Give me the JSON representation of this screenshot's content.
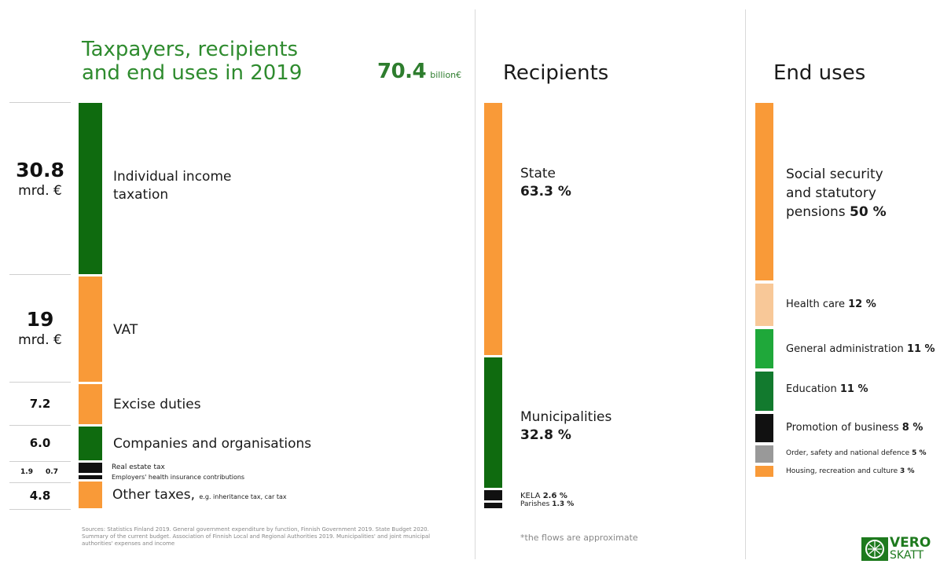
{
  "title": "Taxpayers, recipients and end uses in 2019",
  "total": {
    "value": "70.4",
    "unit": "billion€"
  },
  "headers": {
    "recipients": "Recipients",
    "end_uses": "End uses"
  },
  "amounts": {
    "individual_big": "30.8",
    "individual_unit": "mrd. €",
    "vat_big": "19",
    "vat_unit": "mrd. €",
    "excise": "7.2",
    "companies": "6.0",
    "realestate": "1.9",
    "health_ins": "0.7",
    "other": "4.8"
  },
  "labels": {
    "individual": "Individual income taxation",
    "vat": "VAT",
    "excise": "Excise duties",
    "companies": "Companies and organisations",
    "realestate": "Real estate tax",
    "health_ins": "Employers' health insurance contributions",
    "other": "Other taxes,",
    "other_note": "e.g. inheritance tax, car tax"
  },
  "recipients": {
    "state_name": "State",
    "state_pct": "63.3 %",
    "muni_name": "Municipalities",
    "muni_pct": "32.8 %",
    "kela_name": "KELA",
    "kela_pct": "2.6 %",
    "parishes_name": "Parishes",
    "parishes_pct": "1.3 %"
  },
  "end_uses": {
    "social_1": "Social security",
    "social_2": "and statutory",
    "social_3": "pensions",
    "social_pct": "50 %",
    "health": "Health care",
    "health_pct": "12 %",
    "admin": "General administration",
    "admin_pct": "11 %",
    "education": "Education",
    "education_pct": "11 %",
    "business": "Promotion of business",
    "business_pct": "8 %",
    "order": "Order, safety and national defence",
    "order_pct": "5 %",
    "housing": "Housing, recreation and culture",
    "housing_pct": "3 %"
  },
  "sources": "Sources: Statistics Finland 2019. General government expenditure by function, Finnish Government 2019. State Budget 2020. Summary of the current budget. Association of Finnish Local and Regional Authorities 2019. Municipalities' and joint municipal authorities' expenses and income",
  "note": "*the flows are approximate",
  "logo": {
    "line1": "VERO",
    "line2": "SKATT"
  },
  "colors": {
    "dark_green": "#0f6b0f",
    "orange": "#f99a38",
    "light_orange": "#f8c898",
    "bright_green": "#1fa83a",
    "mid_green": "#127a2e",
    "black": "#111111",
    "gray": "#999999"
  },
  "chart_data": [
    {
      "type": "bar",
      "title": "Taxpayers, recipients and end uses in 2019",
      "categories": [
        "Individual income taxation",
        "VAT",
        "Excise duties",
        "Companies and organisations",
        "Real estate tax",
        "Employers' health insurance contributions",
        "Other taxes"
      ],
      "values": [
        30.8,
        19,
        7.2,
        6.0,
        1.9,
        0.7,
        4.8
      ],
      "unit": "mrd. €",
      "total": 70.4
    },
    {
      "type": "bar",
      "title": "Recipients",
      "categories": [
        "State",
        "Municipalities",
        "KELA",
        "Parishes"
      ],
      "values": [
        63.3,
        32.8,
        2.6,
        1.3
      ],
      "unit": "%"
    },
    {
      "type": "bar",
      "title": "End uses",
      "categories": [
        "Social security and statutory pensions",
        "Health care",
        "General administration",
        "Education",
        "Promotion of business",
        "Order, safety and national defence",
        "Housing, recreation and culture"
      ],
      "values": [
        50,
        12,
        11,
        11,
        8,
        5,
        3
      ],
      "unit": "%"
    }
  ]
}
